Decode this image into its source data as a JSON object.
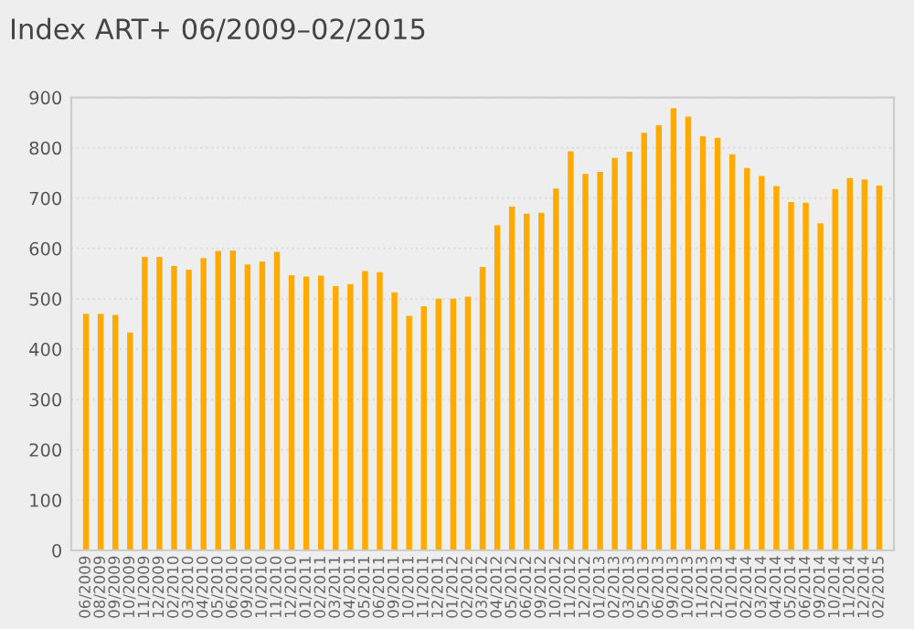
{
  "chart_data": {
    "type": "bar",
    "title": "Index ART+ 06/2009–02/2015",
    "categories": [
      "06/2009",
      "08/2009",
      "09/2009",
      "10/2009",
      "11/2009",
      "12/2009",
      "02/2010",
      "03/2010",
      "04/2010",
      "05/2010",
      "06/2010",
      "09/2010",
      "10/2010",
      "11/2010",
      "12/2010",
      "01/2011",
      "02/2011",
      "03/2011",
      "04/2011",
      "05/2011",
      "06/2011",
      "09/2011",
      "10/2011",
      "11/2011",
      "12/2011",
      "01/2012",
      "02/2012",
      "03/2012",
      "04/2012",
      "05/2012",
      "06/2012",
      "09/2012",
      "10/2012",
      "11/2012",
      "12/2012",
      "01/2013",
      "02/2013",
      "03/2013",
      "05/2013",
      "06/2013",
      "09/2013",
      "10/2013",
      "11/2013",
      "12/2013",
      "01/2014",
      "02/2014",
      "03/2014",
      "04/2014",
      "05/2014",
      "06/2014",
      "09/2014",
      "10/2014",
      "11/2014",
      "12/2014",
      "02/2015"
    ],
    "values": [
      470,
      470,
      468,
      433,
      583,
      583,
      565,
      558,
      581,
      595,
      596,
      568,
      574,
      593,
      547,
      544,
      546,
      525,
      529,
      555,
      553,
      513,
      466,
      485,
      500,
      500,
      504,
      563,
      646,
      683,
      669,
      671,
      719,
      793,
      748,
      752,
      780,
      792,
      830,
      845,
      879,
      862,
      823,
      820,
      787,
      760,
      744,
      724,
      692,
      691,
      650,
      718,
      740,
      737,
      725
    ],
    "color": "#ffaa00",
    "ylim": [
      0,
      900
    ],
    "yticks": [
      0,
      100,
      200,
      300,
      400,
      500,
      600,
      700,
      800,
      900
    ],
    "grid": "y"
  }
}
